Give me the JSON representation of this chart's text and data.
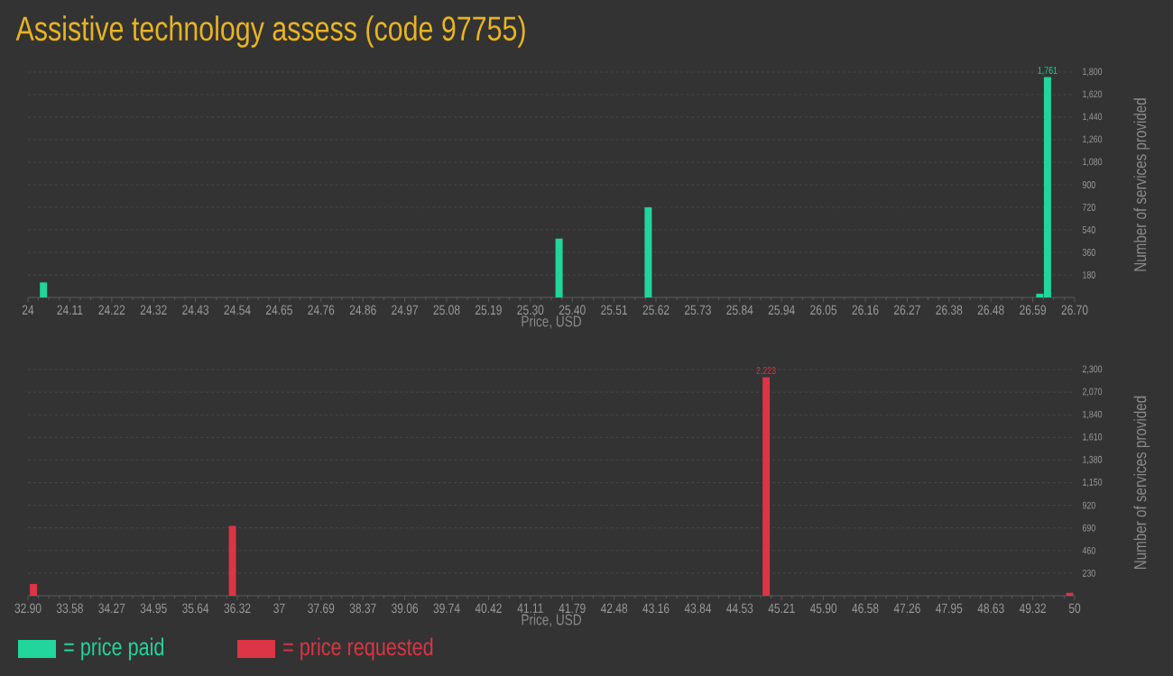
{
  "chart_data": [
    {
      "type": "bar",
      "title": "Assistive technology assess (code 97755)",
      "xlabel": "Price, USD",
      "ylabel": "Number of services provided",
      "x": [
        24.04,
        25.37,
        25.6,
        26.61,
        26.63
      ],
      "series": [
        {
          "name": "= price paid",
          "color": "#21d59b",
          "values": [
            120,
            470,
            720,
            30,
            1761
          ],
          "value_labels": [
            null,
            null,
            null,
            null,
            "1,761"
          ]
        }
      ],
      "xlim": [
        24,
        26.7
      ],
      "xticks": [
        24,
        {
          "value": 24.108,
          "label": "24.11"
        },
        {
          "value": 24.216,
          "label": "24.22"
        },
        {
          "value": 24.324,
          "label": "24.32"
        },
        {
          "value": 24.432,
          "label": "24.43"
        },
        {
          "value": 24.54,
          "label": "24.54"
        },
        {
          "value": 24.648,
          "label": "24.65"
        },
        {
          "value": 24.756,
          "label": "24.76"
        },
        {
          "value": 24.864,
          "label": "24.86"
        },
        {
          "value": 24.972,
          "label": "24.97"
        },
        {
          "value": 25.08,
          "label": "25.08"
        },
        {
          "value": 25.188,
          "label": "25.19"
        },
        {
          "value": 25.296,
          "label": "25.30"
        },
        {
          "value": 25.404,
          "label": "25.40"
        },
        {
          "value": 25.512,
          "label": "25.51"
        },
        {
          "value": 25.62,
          "label": "25.62"
        },
        {
          "value": 25.728,
          "label": "25.73"
        },
        {
          "value": 25.836,
          "label": "25.84"
        },
        {
          "value": 25.944,
          "label": "25.94"
        },
        {
          "value": 26.052,
          "label": "26.05"
        },
        {
          "value": 26.16,
          "label": "26.16"
        },
        {
          "value": 26.268,
          "label": "26.27"
        },
        {
          "value": 26.376,
          "label": "26.38"
        },
        {
          "value": 26.484,
          "label": "26.48"
        },
        {
          "value": 26.592,
          "label": "26.59"
        },
        {
          "value": 26.7,
          "label": "26.70"
        }
      ],
      "ylim": [
        0,
        1800
      ],
      "yticks": [
        180,
        360,
        540,
        720,
        900,
        {
          "value": 1080,
          "label": "1,080"
        },
        {
          "value": 1260,
          "label": "1,260"
        },
        {
          "value": 1440,
          "label": "1,440"
        },
        {
          "value": 1620,
          "label": "1,620"
        },
        {
          "value": 1800,
          "label": "1,800"
        }
      ],
      "grid": "y",
      "legend": "bottom"
    },
    {
      "type": "bar",
      "xlabel": "Price, USD",
      "ylabel": "Number of services provided",
      "x": [
        32.99,
        36.24,
        44.96,
        49.92
      ],
      "series": [
        {
          "name": "= price requested",
          "color": "#dc3545",
          "values": [
            120,
            710,
            2223,
            30
          ],
          "value_labels": [
            null,
            null,
            "2,223",
            null
          ]
        }
      ],
      "xlim": [
        32.9,
        50
      ],
      "xticks": [
        {
          "value": 32.9,
          "label": "32.90"
        },
        {
          "value": 33.584,
          "label": "33.58"
        },
        {
          "value": 34.268,
          "label": "34.27"
        },
        {
          "value": 34.952,
          "label": "34.95"
        },
        {
          "value": 35.636,
          "label": "35.64"
        },
        {
          "value": 36.32,
          "label": "36.32"
        },
        {
          "value": 37.004,
          "label": "37"
        },
        {
          "value": 37.688,
          "label": "37.69"
        },
        {
          "value": 38.372,
          "label": "38.37"
        },
        {
          "value": 39.056,
          "label": "39.06"
        },
        {
          "value": 39.74,
          "label": "39.74"
        },
        {
          "value": 40.424,
          "label": "40.42"
        },
        {
          "value": 41.108,
          "label": "41.11"
        },
        {
          "value": 41.792,
          "label": "41.79"
        },
        {
          "value": 42.476,
          "label": "42.48"
        },
        {
          "value": 43.16,
          "label": "43.16"
        },
        {
          "value": 43.844,
          "label": "43.84"
        },
        {
          "value": 44.528,
          "label": "44.53"
        },
        {
          "value": 45.212,
          "label": "45.21"
        },
        {
          "value": 45.896,
          "label": "45.90"
        },
        {
          "value": 46.58,
          "label": "46.58"
        },
        {
          "value": 47.264,
          "label": "47.26"
        },
        {
          "value": 47.948,
          "label": "47.95"
        },
        {
          "value": 48.632,
          "label": "48.63"
        },
        {
          "value": 49.316,
          "label": "49.32"
        },
        50
      ],
      "ylim": [
        0,
        2300
      ],
      "yticks": [
        230,
        460,
        690,
        920,
        {
          "value": 1150,
          "label": "1,150"
        },
        {
          "value": 1380,
          "label": "1,380"
        },
        {
          "value": 1610,
          "label": "1,610"
        },
        {
          "value": 1840,
          "label": "1,840"
        },
        {
          "value": 2070,
          "label": "2,070"
        },
        {
          "value": 2300,
          "label": "2,300"
        }
      ],
      "grid": "y",
      "legend": "bottom"
    }
  ]
}
